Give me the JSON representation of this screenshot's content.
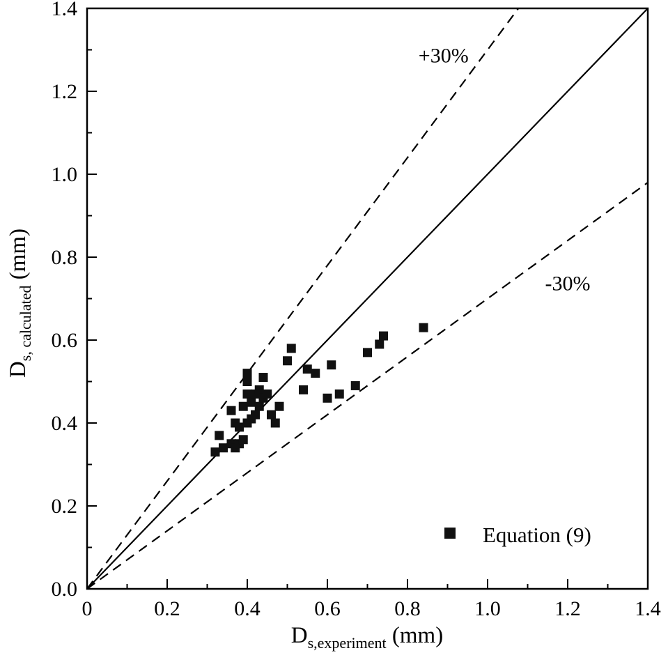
{
  "colors": {
    "foreground": "#000000",
    "background": "#ffffff"
  },
  "chart_data": {
    "type": "scatter",
    "title": "",
    "xlabel_parts": {
      "main": "D",
      "sub": "s,experiment",
      "rest": " (mm)"
    },
    "ylabel_parts": {
      "main": "D",
      "sub": "s, calculated",
      "rest": " (mm)"
    },
    "xlim": [
      0,
      1.4
    ],
    "ylim": [
      0,
      1.4
    ],
    "grid": false,
    "x_ticks": [
      0,
      0.2,
      0.4,
      0.6,
      0.8,
      1.0,
      1.2,
      1.4
    ],
    "x_tick_labels": [
      "0",
      "0.2",
      "0.4",
      "0.6",
      "0.8",
      "1.0",
      "1.2",
      "1.4"
    ],
    "y_ticks": [
      0,
      0.2,
      0.4,
      0.6,
      0.8,
      1.0,
      1.2,
      1.4
    ],
    "y_tick_labels": [
      "0.0",
      "0.2",
      "0.4",
      "0.6",
      "0.8",
      "1.0",
      "1.2",
      "1.4"
    ],
    "minor_tick_step": 0.1,
    "reference_lines": [
      {
        "name": "parity-line",
        "slope": 1.0,
        "style": "solid"
      },
      {
        "name": "plus30-line",
        "slope": 1.3,
        "style": "dashed"
      },
      {
        "name": "minus30-line",
        "slope": 0.7,
        "style": "dashed"
      }
    ],
    "annotations": [
      {
        "name": "plus30-label",
        "text": "+30%",
        "x": 0.89,
        "y": 1.27
      },
      {
        "name": "minus30-label",
        "text": "-30%",
        "x": 1.2,
        "y": 0.72
      }
    ],
    "legend": {
      "label": "Equation (9)",
      "marker": "square",
      "marker_color": "#111111",
      "position": "bottom-right"
    },
    "series": [
      {
        "name": "Equation (9)",
        "marker": "square",
        "color": "#111111",
        "points": [
          [
            0.32,
            0.33
          ],
          [
            0.33,
            0.37
          ],
          [
            0.34,
            0.34
          ],
          [
            0.36,
            0.35
          ],
          [
            0.36,
            0.43
          ],
          [
            0.37,
            0.34
          ],
          [
            0.37,
            0.4
          ],
          [
            0.38,
            0.35
          ],
          [
            0.38,
            0.39
          ],
          [
            0.39,
            0.36
          ],
          [
            0.39,
            0.44
          ],
          [
            0.4,
            0.4
          ],
          [
            0.4,
            0.47
          ],
          [
            0.4,
            0.5
          ],
          [
            0.4,
            0.52
          ],
          [
            0.41,
            0.41
          ],
          [
            0.41,
            0.45
          ],
          [
            0.42,
            0.42
          ],
          [
            0.42,
            0.47
          ],
          [
            0.43,
            0.44
          ],
          [
            0.43,
            0.48
          ],
          [
            0.44,
            0.46
          ],
          [
            0.44,
            0.51
          ],
          [
            0.45,
            0.47
          ],
          [
            0.46,
            0.42
          ],
          [
            0.47,
            0.4
          ],
          [
            0.48,
            0.44
          ],
          [
            0.5,
            0.55
          ],
          [
            0.51,
            0.58
          ],
          [
            0.54,
            0.48
          ],
          [
            0.55,
            0.53
          ],
          [
            0.57,
            0.52
          ],
          [
            0.6,
            0.46
          ],
          [
            0.61,
            0.54
          ],
          [
            0.63,
            0.47
          ],
          [
            0.67,
            0.49
          ],
          [
            0.7,
            0.57
          ],
          [
            0.73,
            0.59
          ],
          [
            0.74,
            0.61
          ],
          [
            0.84,
            0.63
          ]
        ]
      }
    ]
  }
}
